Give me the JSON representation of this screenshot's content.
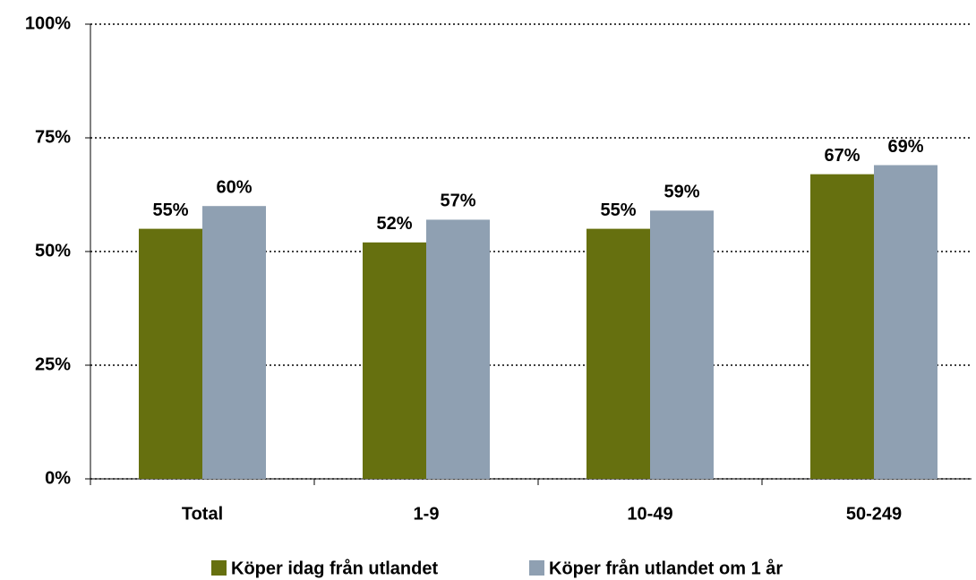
{
  "chart_data": {
    "type": "bar",
    "categories": [
      "Total",
      "1-9",
      "10-49",
      "50-249"
    ],
    "series": [
      {
        "name": "Köper idag från utlandet",
        "color": "#66700f",
        "values": [
          55,
          52,
          55,
          67
        ],
        "value_labels": [
          "55%",
          "52%",
          "55%",
          "67%"
        ]
      },
      {
        "name": "Köper från utlandet om 1 år",
        "color": "#8fa0b2",
        "values": [
          60,
          57,
          59,
          69
        ],
        "value_labels": [
          "60%",
          "57%",
          "59%",
          "69%"
        ]
      }
    ],
    "ylim": [
      0,
      100
    ],
    "yticks": [
      {
        "value": 0,
        "label": "0%"
      },
      {
        "value": 25,
        "label": "25%"
      },
      {
        "value": 50,
        "label": "50%"
      },
      {
        "value": 75,
        "label": "75%"
      },
      {
        "value": 100,
        "label": "100%"
      }
    ],
    "grid": true,
    "legend": "bottom"
  }
}
